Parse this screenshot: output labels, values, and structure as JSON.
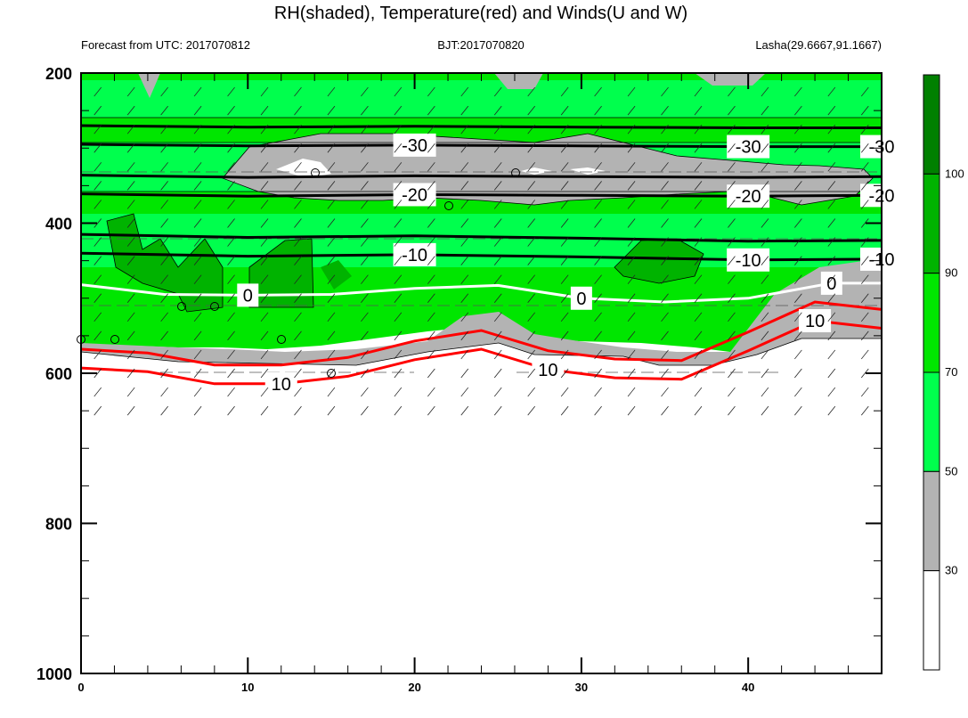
{
  "header": {
    "title": "RH(shaded), Temperature(red) and Winds(U and W)",
    "left": "Forecast from UTC: 2017070812",
    "center": "BJT:2017070820",
    "right": "Lasha(29.6667,91.1667)"
  },
  "chart_data": {
    "type": "heatmap",
    "title": "RH(shaded), Temperature(red) and Winds(U and W)",
    "xlabel": "",
    "ylabel": "",
    "xlim": [
      0,
      48
    ],
    "ylim": [
      1000,
      200
    ],
    "x_ticks": [
      0,
      10,
      20,
      30,
      40
    ],
    "x_tick_labels": [
      "0",
      "10",
      "20",
      "30",
      "40"
    ],
    "y_ticks": [
      200,
      400,
      600,
      800,
      1000
    ],
    "y_tick_labels": [
      "200",
      "400",
      "600",
      "800",
      "1000"
    ],
    "colorbar": {
      "levels": [
        30,
        50,
        70,
        90,
        100
      ],
      "labels": [
        "30",
        "50",
        "70",
        "90",
        "100"
      ],
      "colors": [
        "#ffffff",
        "#b3b3b3",
        "#00ff4d",
        "#00e600",
        "#00b300",
        "#008000"
      ]
    },
    "temperature_contours": [
      {
        "value": -30,
        "label": "-30",
        "color": "#000000",
        "x": [
          0,
          10,
          20,
          30,
          40,
          48
        ],
        "y": [
          295,
          297,
          296,
          297,
          298,
          298
        ]
      },
      {
        "value": -20,
        "label": "-20",
        "color": "#000000",
        "x": [
          0,
          10,
          20,
          30,
          40,
          48
        ],
        "y": [
          361,
          364,
          362,
          363,
          364,
          363
        ]
      },
      {
        "value": -10,
        "label": "-10",
        "color": "#000000",
        "x": [
          0,
          10,
          20,
          30,
          40,
          48
        ],
        "y": [
          440,
          444,
          442,
          445,
          449,
          448
        ]
      },
      {
        "value": 0,
        "label": "0",
        "color": "#ffffff",
        "x": [
          0,
          5,
          10,
          15,
          20,
          25,
          30,
          35,
          40,
          45,
          48
        ],
        "y": [
          482,
          495,
          496,
          495,
          487,
          483,
          500,
          505,
          500,
          480,
          480
        ]
      },
      {
        "value": 10,
        "label": "10",
        "color": "#ff0000",
        "x": [
          0,
          4,
          8,
          12,
          16,
          20,
          24,
          28,
          32,
          36,
          40,
          44,
          48
        ],
        "y": [
          593,
          598,
          614,
          614,
          604,
          582,
          568,
          595,
          606,
          608,
          570,
          530,
          540
        ]
      }
    ],
    "wind_barbs": "U and W"
  },
  "colors": {
    "warm_contour": "#ff0000",
    "freezing_contour": "#ffffff",
    "cold_contour": "#000000",
    "frame": "#000000"
  }
}
